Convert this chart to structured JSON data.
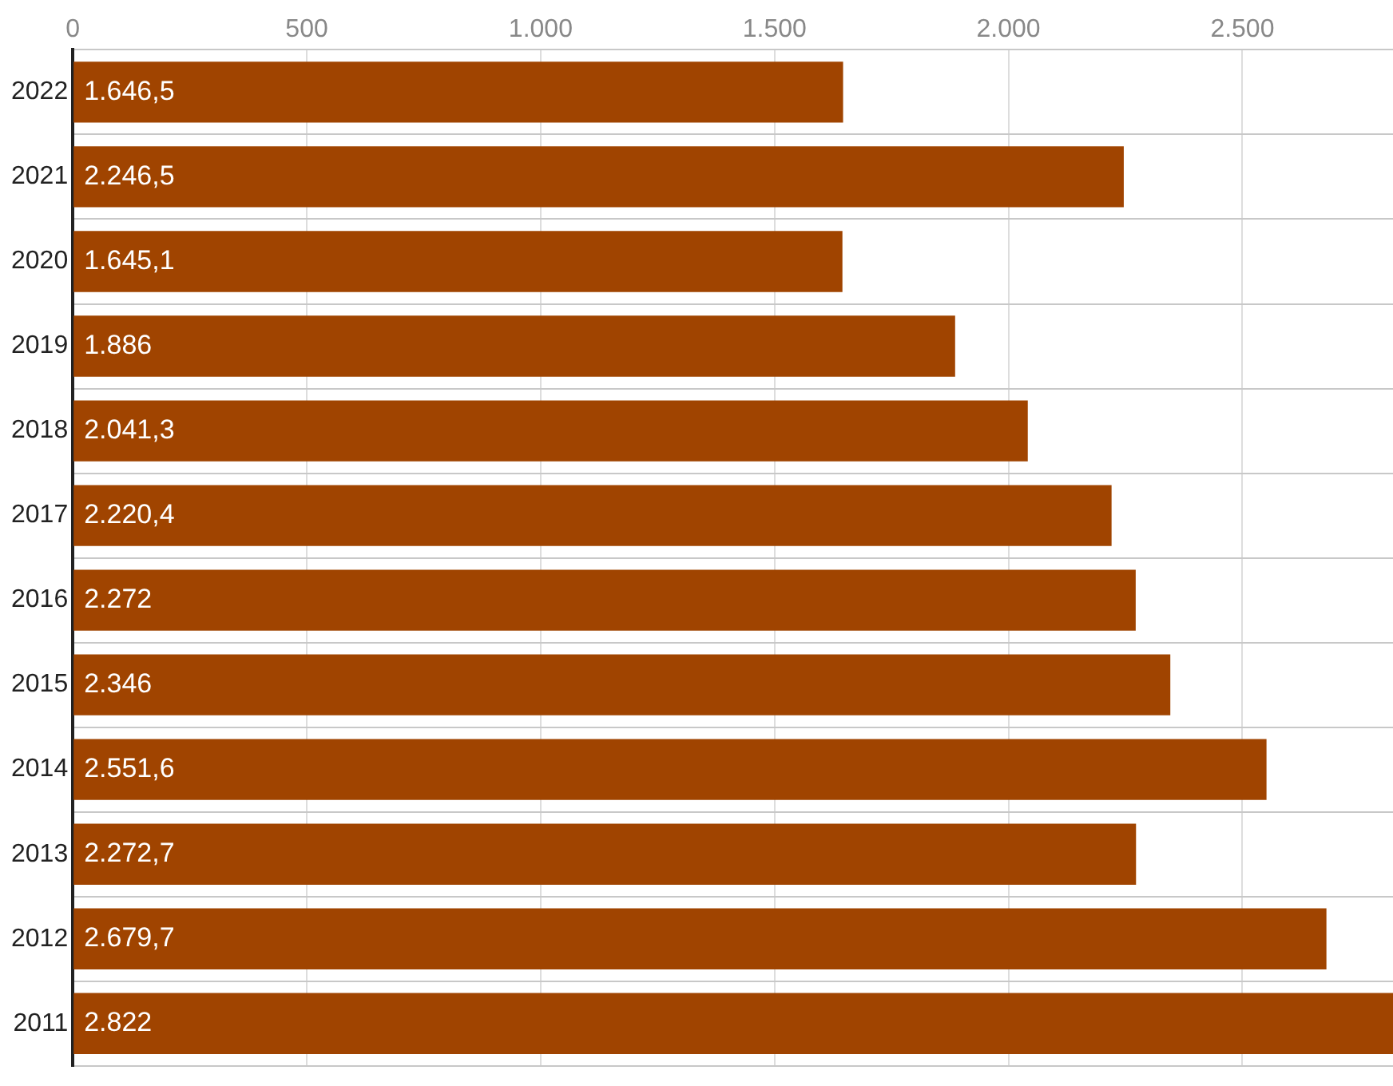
{
  "chart_data": {
    "type": "bar",
    "orientation": "horizontal",
    "categories": [
      "2022",
      "2021",
      "2020",
      "2019",
      "2018",
      "2017",
      "2016",
      "2015",
      "2014",
      "2013",
      "2012",
      "2011"
    ],
    "values": [
      1646.5,
      2246.5,
      1645.1,
      1886,
      2041.3,
      2220.4,
      2272,
      2346,
      2551.6,
      2272.7,
      2679.7,
      2822
    ],
    "value_labels": [
      "1.646,5",
      "2.246,5",
      "1.645,1",
      "1.886",
      "2.041,3",
      "2.220,4",
      "2.272",
      "2.346",
      "2.551,6",
      "2.272,7",
      "2.679,7",
      "2.822"
    ],
    "color": "#a04400",
    "xlim": [
      0,
      2822
    ],
    "xticks": [
      0,
      500,
      {
        "value": 1000,
        "label": "1.000"
      },
      {
        "value": 1500,
        "label": "1.500"
      },
      {
        "value": 2000,
        "label": "2.000"
      },
      {
        "value": 2500,
        "label": "2.500"
      }
    ],
    "grid": true
  }
}
